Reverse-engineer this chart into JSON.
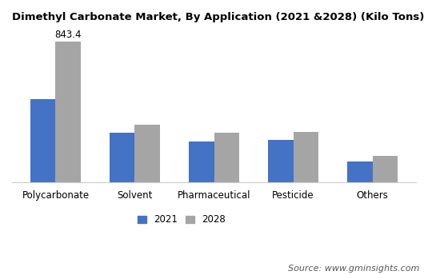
{
  "title": "Dimethyl Carbonate Market, By Application (2021 &2028) (Kilo Tons)",
  "categories": [
    "Polycarbonate",
    "Solvent",
    "Pharmaceutical",
    "Pesticide",
    "Others"
  ],
  "values_2021": [
    500,
    295,
    244,
    252,
    126
  ],
  "values_2028": [
    843.4,
    345,
    295,
    302,
    160
  ],
  "label_2028_polycarbonate": "843.4",
  "color_2021": "#4472c4",
  "color_2028": "#a5a5a5",
  "legend_labels": [
    "2021",
    "2028"
  ],
  "bar_width": 0.32,
  "ylim": [
    0,
    920
  ],
  "source_text": "Source: www.gminsights.com",
  "background_color": "#ffffff",
  "title_fontsize": 9.5,
  "tick_fontsize": 8.5,
  "legend_fontsize": 8.5,
  "source_fontsize": 8
}
